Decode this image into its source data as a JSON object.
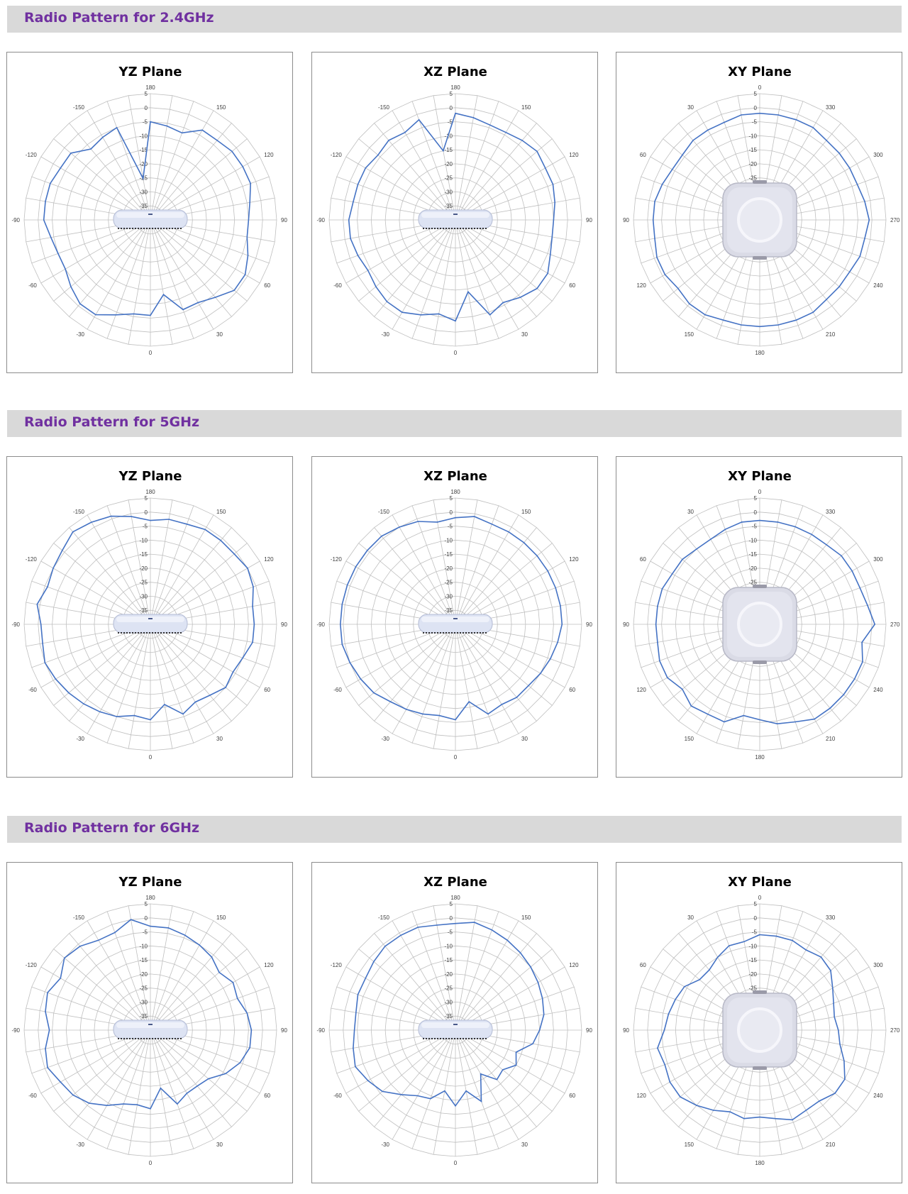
{
  "sections": [
    {
      "title": "Radio Pattern for 2.4GHz",
      "charts": [
        0,
        1,
        2
      ]
    },
    {
      "title": "Radio Pattern for 5GHz",
      "charts": [
        3,
        4,
        5
      ]
    },
    {
      "title": "Radio Pattern for 6GHz",
      "charts": [
        6,
        7,
        8
      ]
    }
  ],
  "colors": {
    "series": "#4472c4",
    "grid": "#bfbfbf",
    "section_title": "#7030a0",
    "section_bar": "#d9d9d9"
  },
  "chart_data": [
    {
      "type": "radar",
      "title": "YZ Plane",
      "radial_ticks": [
        "5",
        "0",
        "-5",
        "-10",
        "-15",
        "-20",
        "-25",
        "-30",
        "-35"
      ],
      "rlim": [
        -40,
        5
      ],
      "angle_labels": {
        "top": "180",
        "right": "90",
        "bottom": "0",
        "left": "-90",
        "upper_right": "150",
        "upper_left": "-150",
        "right_upper": "120",
        "left_upper": "-120",
        "right_lower": "60",
        "left_lower": "-60",
        "lower_right": "30",
        "lower_left": "-30"
      },
      "product_icon": "router-side-view",
      "values": [
        -5,
        -6,
        -7,
        -3,
        -3,
        -2,
        -2,
        -2,
        -4,
        -5,
        -5,
        -3,
        -1,
        -1,
        -4,
        -6,
        -6,
        -13,
        -6,
        -6,
        -4,
        -1,
        -1,
        -3,
        -5,
        -5,
        -4,
        -2,
        -2,
        -2,
        -3,
        -3,
        -7,
        -6,
        -5,
        -25
      ]
    },
    {
      "type": "radar",
      "title": "XZ Plane",
      "radial_ticks": [
        "5",
        "0",
        "-5",
        "-10",
        "-15",
        "-20",
        "-25",
        "-30",
        "-35"
      ],
      "rlim": [
        -40,
        5
      ],
      "angle_labels": {
        "top": "180",
        "right": "90",
        "bottom": "0",
        "left": "-90",
        "upper_right": "150",
        "upper_left": "-150",
        "right_upper": "120",
        "left_upper": "-120",
        "right_lower": "60",
        "left_lower": "-60",
        "lower_right": "30",
        "lower_left": "-30"
      },
      "product_icon": "router-side-view",
      "values": [
        -2,
        -3,
        -4,
        -4,
        -3,
        -2,
        -3,
        -3,
        -4,
        -5,
        -5,
        -4,
        -2,
        -2,
        -4,
        -6,
        -4,
        -14,
        -4,
        -6,
        -4,
        -2,
        -2,
        -3,
        -4,
        -3,
        -2,
        -2,
        -3,
        -3,
        -3,
        -4,
        -3,
        -4,
        -2,
        -15
      ]
    },
    {
      "type": "radar",
      "title": "XY Plane",
      "radial_ticks": [
        "5",
        "0",
        "-5",
        "-10",
        "-15",
        "-20",
        "-25"
      ],
      "rlim": [
        -40,
        5
      ],
      "angle_labels": {
        "top": "0",
        "right": "270",
        "bottom": "180",
        "left": "90",
        "upper_right": "330",
        "upper_left": "30",
        "right_upper": "300",
        "left_upper": "60",
        "right_lower": "240",
        "left_lower": "120",
        "lower_right": "210",
        "lower_left": "150"
      },
      "product_icon": "router-top-view",
      "values": [
        -2,
        -2,
        -2,
        -2,
        -3,
        -3,
        -3,
        -3,
        -2,
        -1,
        -2,
        -2,
        -3,
        -3,
        -3,
        -2,
        -2,
        -2,
        -2,
        -2,
        -2,
        -1,
        -1,
        -2,
        -1,
        -1,
        -2,
        -2,
        -2,
        -3,
        -4,
        -4,
        -3,
        -3,
        -3,
        -2
      ]
    },
    {
      "type": "radar",
      "title": "YZ Plane",
      "radial_ticks": [
        "5",
        "0",
        "-5",
        "-10",
        "-15",
        "-20",
        "-25",
        "-30",
        "-35"
      ],
      "rlim": [
        -40,
        5
      ],
      "angle_labels": {
        "top": "180",
        "right": "90",
        "bottom": "0",
        "left": "-90",
        "upper_right": "150",
        "upper_left": "-150",
        "right_upper": "120",
        "left_upper": "-120",
        "right_lower": "60",
        "left_lower": "-60",
        "lower_right": "30",
        "lower_left": "-30"
      },
      "product_icon": "router-side-view",
      "values": [
        -3,
        -2,
        -2,
        -1,
        -1,
        -1,
        0,
        -1,
        -3,
        -3,
        -3,
        -5,
        -6,
        -5,
        -7,
        -8,
        -6,
        -11,
        -6,
        -7,
        -5,
        -4,
        -3,
        -2,
        -1,
        0,
        -1,
        -1,
        1,
        -1,
        0,
        1,
        3,
        2,
        1,
        -1
      ]
    },
    {
      "type": "radar",
      "title": "XZ Plane",
      "radial_ticks": [
        "5",
        "0",
        "-5",
        "-10",
        "-15",
        "-20",
        "-25",
        "-30",
        "-35"
      ],
      "rlim": [
        -40,
        5
      ],
      "angle_labels": {
        "top": "180",
        "right": "90",
        "bottom": "0",
        "left": "-90",
        "upper_right": "150",
        "upper_left": "-150",
        "right_upper": "120",
        "left_upper": "-120",
        "right_lower": "60",
        "left_lower": "-60",
        "lower_right": "30",
        "lower_left": "-30"
      },
      "product_icon": "router-side-view",
      "values": [
        -2,
        -1,
        -2,
        -2,
        -2,
        -2,
        -2,
        -2,
        -2,
        -2,
        -3,
        -4,
        -5,
        -6,
        -6,
        -7,
        -6,
        -12,
        -6,
        -7,
        -6,
        -5,
        -4,
        -2,
        -1,
        0,
        1,
        1,
        1,
        1,
        1,
        1,
        1,
        0,
        -1,
        -3
      ]
    },
    {
      "type": "radar",
      "title": "XY Plane",
      "radial_ticks": [
        "5",
        "0",
        "-5",
        "-10",
        "-15",
        "-20",
        "-25"
      ],
      "rlim": [
        -40,
        5
      ],
      "angle_labels": {
        "top": "0",
        "right": "270",
        "bottom": "180",
        "left": "90",
        "upper_right": "330",
        "upper_left": "30",
        "right_upper": "300",
        "left_upper": "60",
        "right_lower": "240",
        "left_lower": "120",
        "lower_right": "210",
        "lower_left": "150"
      },
      "product_icon": "router-top-view",
      "values": [
        -3,
        -3,
        -3,
        -3,
        -3,
        -2,
        -2,
        -2,
        -1,
        1,
        -3,
        -1,
        -1,
        -1,
        -1,
        -1,
        -3,
        -4,
        -6,
        -7,
        -3,
        -3,
        -2,
        -4,
        -2,
        -2,
        -3,
        -3,
        -3,
        -3,
        -4,
        -4,
        -5,
        -5,
        -4,
        -3
      ]
    },
    {
      "type": "radar",
      "title": "YZ Plane",
      "radial_ticks": [
        "5",
        "0",
        "-5",
        "-10",
        "-15",
        "-20",
        "-25",
        "-30",
        "-35"
      ],
      "rlim": [
        -40,
        5
      ],
      "angle_labels": {
        "top": "180",
        "right": "90",
        "bottom": "0",
        "left": "-90",
        "upper_right": "150",
        "upper_left": "-150",
        "right_upper": "120",
        "left_upper": "-120",
        "right_lower": "60",
        "left_lower": "-60",
        "lower_right": "30",
        "lower_left": "-30"
      },
      "product_icon": "router-side-view",
      "values": [
        -3,
        -3,
        -4,
        -5,
        -6,
        -8,
        -6,
        -7,
        -5,
        -4,
        -4,
        -6,
        -9,
        -13,
        -14,
        -14,
        -12,
        -19,
        -12,
        -13,
        -12,
        -9,
        -6,
        -4,
        -3,
        -1,
        -2,
        -4,
        -2,
        -1,
        -3,
        0,
        -1,
        -3,
        -3,
        0
      ]
    },
    {
      "type": "radar",
      "title": "XZ Plane",
      "radial_ticks": [
        "5",
        "0",
        "-5",
        "-10",
        "-15",
        "-20",
        "-25",
        "-30",
        "-35"
      ],
      "rlim": [
        -40,
        5
      ],
      "angle_labels": {
        "top": "180",
        "right": "90",
        "bottom": "0",
        "left": "-90",
        "upper_right": "150",
        "upper_left": "-150",
        "right_upper": "120",
        "left_upper": "-120",
        "right_lower": "60",
        "left_lower": "-60",
        "lower_right": "30",
        "lower_left": "-30"
      },
      "product_icon": "router-side-view",
      "values": [
        -2,
        -1,
        -2,
        -3,
        -4,
        -5,
        -6,
        -7,
        -8,
        -10,
        -12,
        -17,
        -15,
        -18,
        -17,
        -22,
        -13,
        -18,
        -13,
        -18,
        -14,
        -13,
        -10,
        -6,
        -4,
        -2,
        -3,
        -4,
        -4,
        -3,
        -3,
        -2,
        -1,
        -1,
        -1,
        -2
      ]
    },
    {
      "type": "radar",
      "title": "XY Plane",
      "radial_ticks": [
        "5",
        "0",
        "-5",
        "-10",
        "-15",
        "-20",
        "-25"
      ],
      "rlim": [
        -40,
        5
      ],
      "angle_labels": {
        "top": "0",
        "right": "270",
        "bottom": "180",
        "left": "90",
        "upper_right": "330",
        "upper_left": "30",
        "right_upper": "300",
        "left_upper": "60",
        "right_lower": "240",
        "left_lower": "120",
        "lower_right": "210",
        "lower_left": "150"
      },
      "product_icon": "router-top-view",
      "values": [
        -6,
        -6,
        -6,
        -7,
        -6,
        -7,
        -10,
        -12,
        -13,
        -12,
        -11,
        -8,
        -5,
        -5,
        -7,
        -7,
        -6,
        -8,
        -9,
        -8,
        -9,
        -7,
        -5,
        -3,
        -3,
        -4,
        -3,
        -6,
        -7,
        -8,
        -9,
        -12,
        -12,
        -10,
        -8,
        -8
      ]
    }
  ]
}
